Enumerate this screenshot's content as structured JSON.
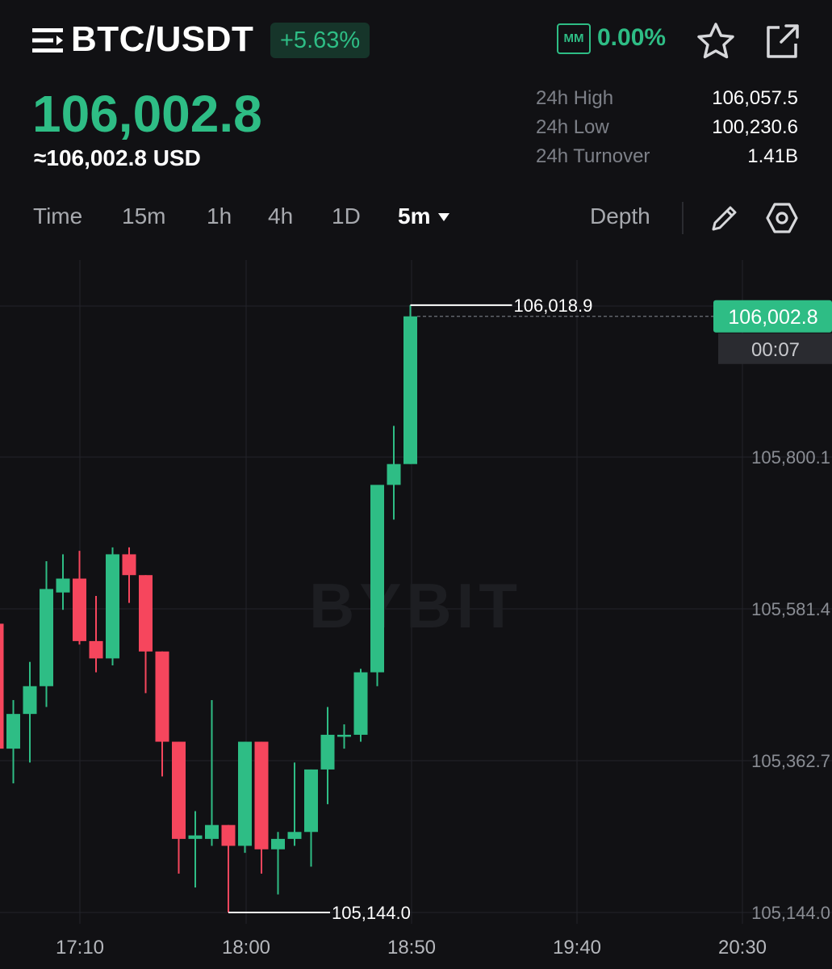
{
  "header": {
    "pair": "BTC/USDT",
    "change_pct": "+5.63%",
    "mm_label": "MM",
    "mm_value": "0.00%",
    "icons": [
      "menu-icon",
      "star-icon",
      "share-icon"
    ]
  },
  "price": {
    "last": "106,002.8",
    "usd": "≈106,002.8 USD"
  },
  "stats": [
    {
      "label": "24h High",
      "value": "106,057.5"
    },
    {
      "label": "24h Low",
      "value": "100,230.6"
    },
    {
      "label": "24h Turnover",
      "value": "1.41B"
    }
  ],
  "toolbar": {
    "tabs": [
      "Time",
      "15m",
      "1h",
      "4h",
      "1D",
      "5m"
    ],
    "active_tab": "5m",
    "depth": "Depth",
    "icons": [
      "caret-down-icon",
      "pencil-icon",
      "settings-icon"
    ]
  },
  "colors": {
    "up": "#2ebd85",
    "down": "#f6465d",
    "background": "#111114"
  },
  "chart_data": {
    "type": "candlestick",
    "watermark": "BYBIT",
    "x_ticks": [
      "17:10",
      "18:00",
      "18:50",
      "19:40",
      "20:30"
    ],
    "y_ticks": [
      "105,800.1",
      "105,581.4",
      "105,362.7",
      "105,144.0"
    ],
    "y_tick_values": [
      105800.1,
      105581.4,
      105362.7,
      105144.0
    ],
    "high_label": "106,018.9",
    "low_label": "105,144.0",
    "current_price": "106,002.8",
    "countdown": "00:07",
    "candles": [
      {
        "o": 105560,
        "h": 105560,
        "l": 105360,
        "c": 105380
      },
      {
        "o": 105380,
        "h": 105450,
        "l": 105330,
        "c": 105430
      },
      {
        "o": 105430,
        "h": 105505,
        "l": 105360,
        "c": 105470
      },
      {
        "o": 105470,
        "h": 105650,
        "l": 105440,
        "c": 105610
      },
      {
        "o": 105605,
        "h": 105660,
        "l": 105580,
        "c": 105625
      },
      {
        "o": 105625,
        "h": 105665,
        "l": 105530,
        "c": 105535
      },
      {
        "o": 105535,
        "h": 105600,
        "l": 105490,
        "c": 105510
      },
      {
        "o": 105510,
        "h": 105670,
        "l": 105500,
        "c": 105660
      },
      {
        "o": 105660,
        "h": 105670,
        "l": 105590,
        "c": 105630
      },
      {
        "o": 105630,
        "h": 105630,
        "l": 105460,
        "c": 105520
      },
      {
        "o": 105520,
        "h": 105520,
        "l": 105340,
        "c": 105390
      },
      {
        "o": 105390,
        "h": 105390,
        "l": 105200,
        "c": 105250
      },
      {
        "o": 105250,
        "h": 105290,
        "l": 105180,
        "c": 105255
      },
      {
        "o": 105250,
        "h": 105450,
        "l": 105240,
        "c": 105270
      },
      {
        "o": 105270,
        "h": 105270,
        "l": 105144,
        "c": 105240
      },
      {
        "o": 105240,
        "h": 105390,
        "l": 105230,
        "c": 105390
      },
      {
        "o": 105390,
        "h": 105390,
        "l": 105200,
        "c": 105235
      },
      {
        "o": 105235,
        "h": 105260,
        "l": 105170,
        "c": 105250
      },
      {
        "o": 105250,
        "h": 105360,
        "l": 105240,
        "c": 105260
      },
      {
        "o": 105260,
        "h": 105350,
        "l": 105210,
        "c": 105350
      },
      {
        "o": 105350,
        "h": 105440,
        "l": 105300,
        "c": 105400
      },
      {
        "o": 105398,
        "h": 105415,
        "l": 105380,
        "c": 105400
      },
      {
        "o": 105400,
        "h": 105495,
        "l": 105390,
        "c": 105490
      },
      {
        "o": 105490,
        "h": 105760,
        "l": 105470,
        "c": 105760
      },
      {
        "o": 105760,
        "h": 105845,
        "l": 105710,
        "c": 105790
      },
      {
        "o": 105790,
        "h": 106018.9,
        "l": 105790,
        "c": 106002.8
      }
    ]
  }
}
